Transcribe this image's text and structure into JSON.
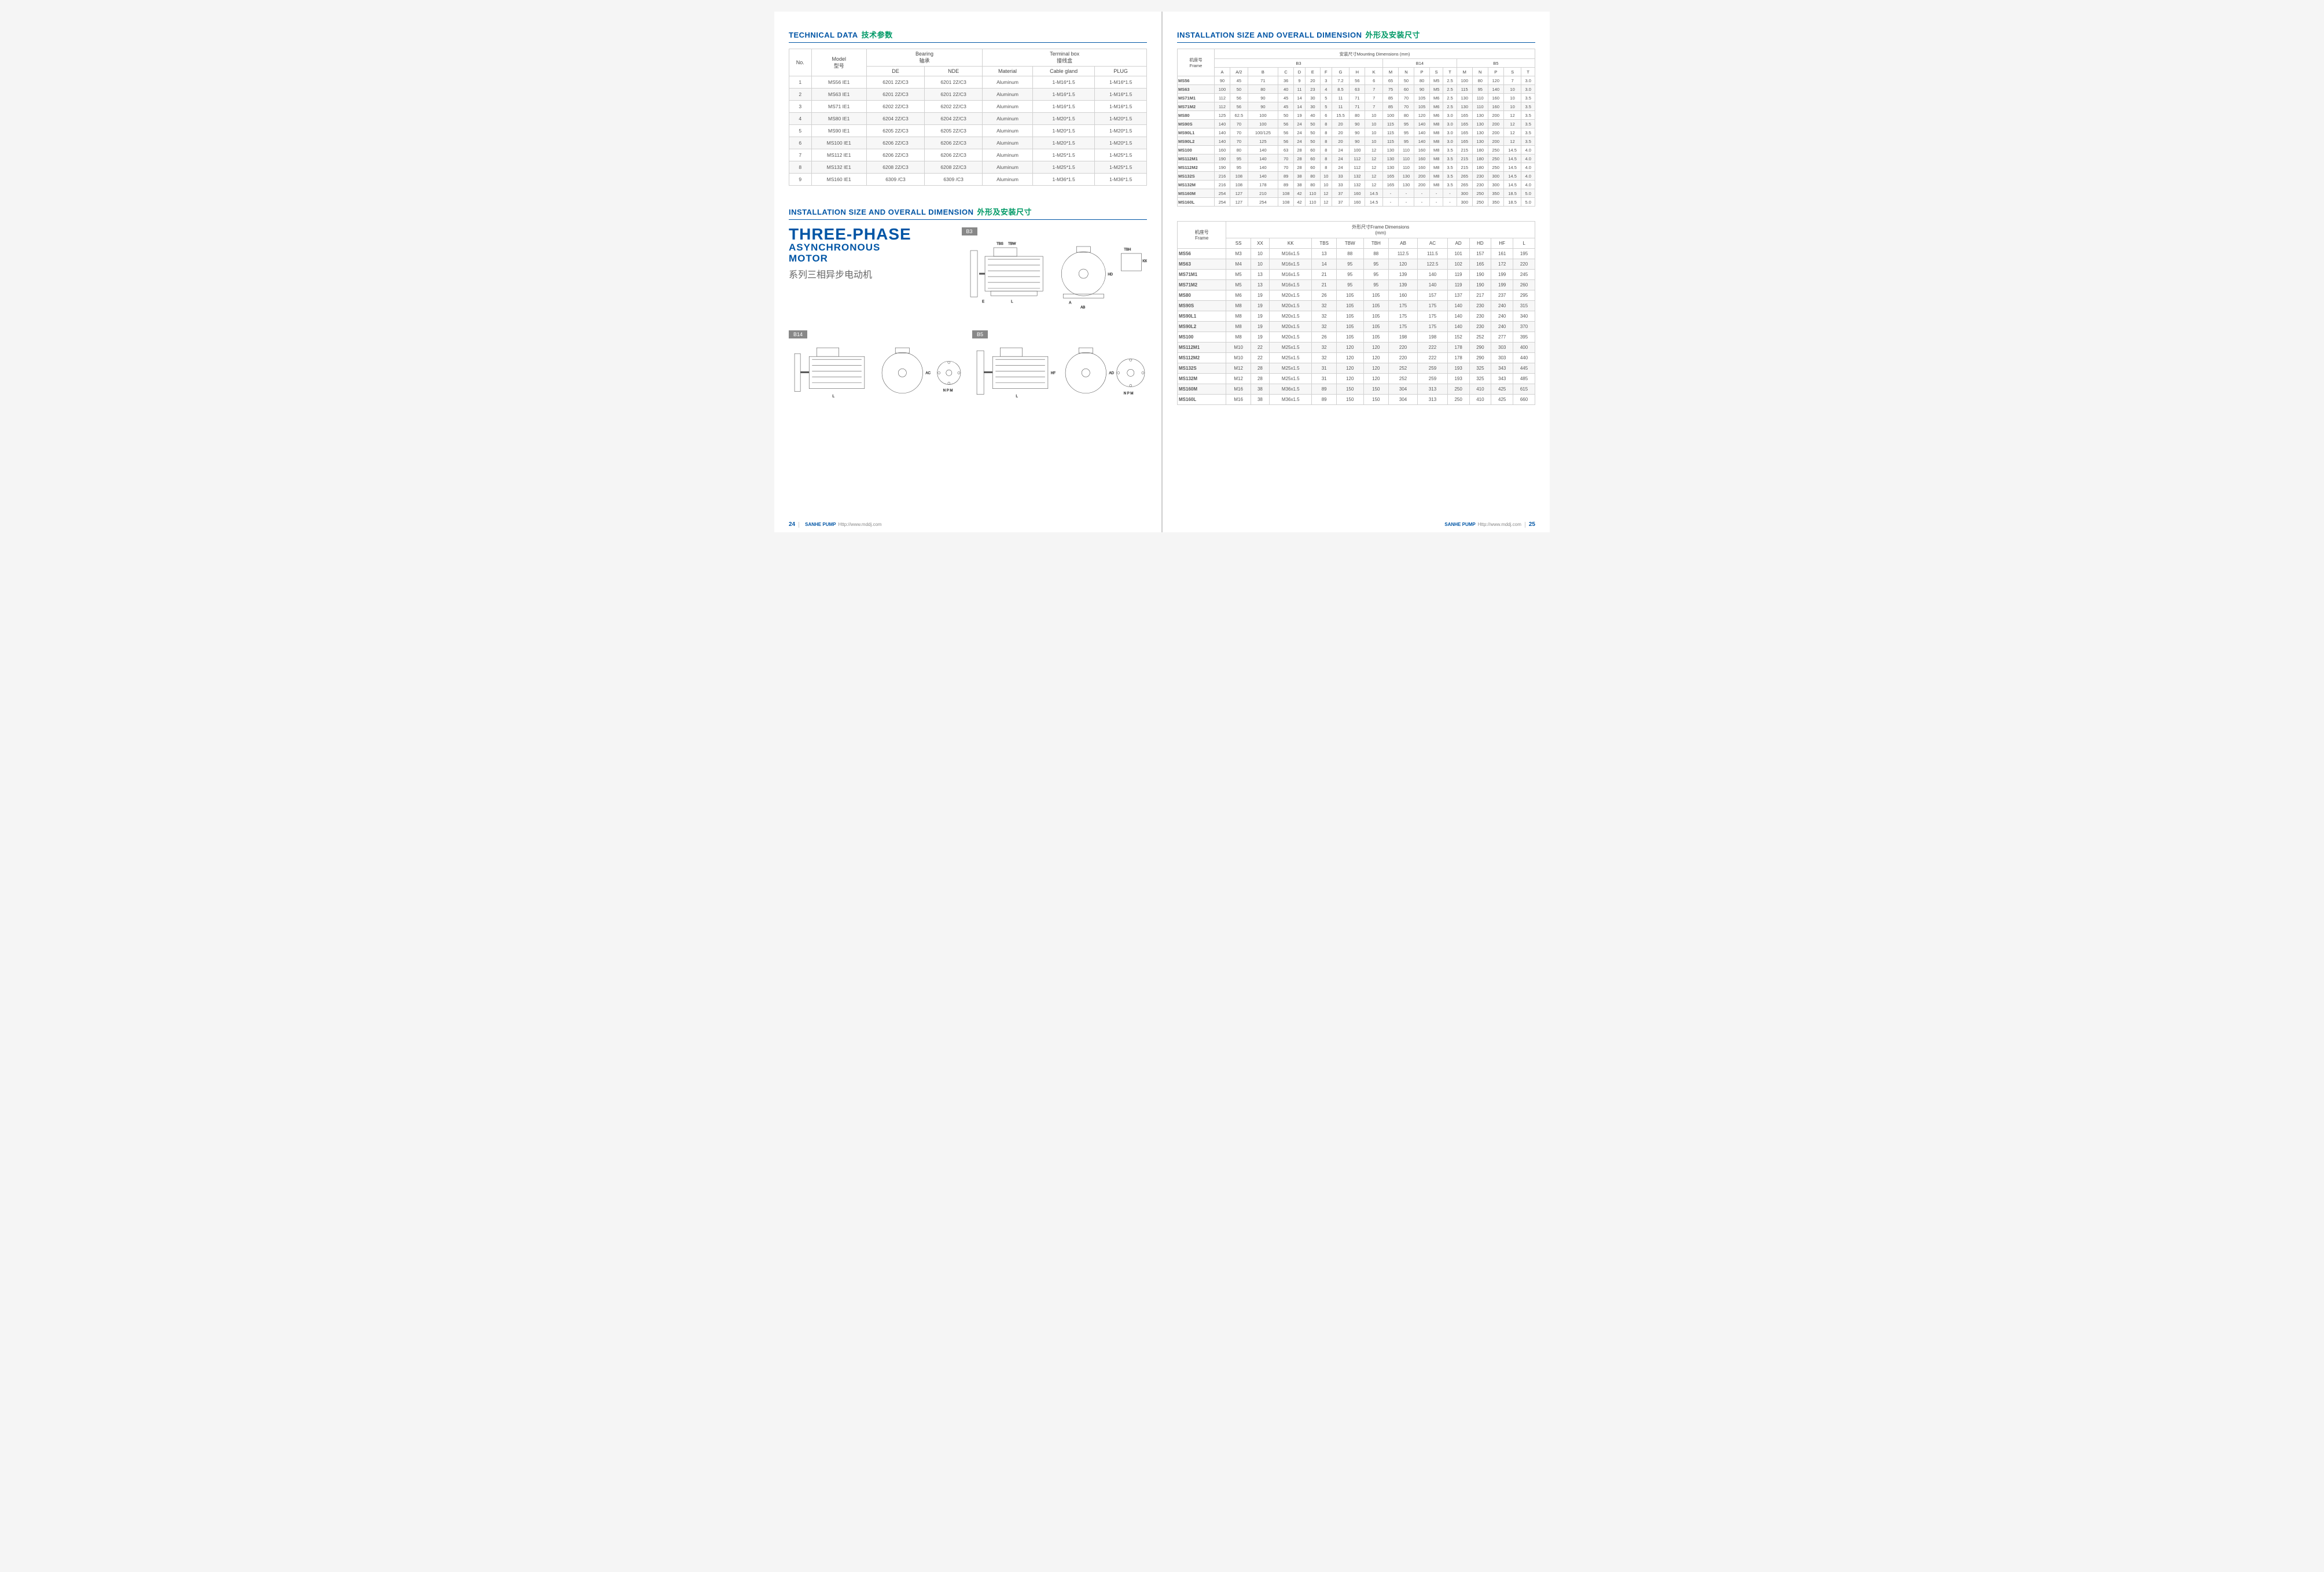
{
  "titles": {
    "techData": "TECHNICAL DATA",
    "techDataCn": "技术参数",
    "install": "INSTALLATION SIZE AND OVERALL DIMENSION",
    "installCn": "外形及安装尺寸",
    "bigTitle1": "THREE-PHASE",
    "bigTitle2": "ASYNCHRONOUS",
    "bigTitle3": "MOTOR",
    "cnTitle": "系列三相异步电动机"
  },
  "diaLabels": {
    "b3": "B3",
    "b14": "B14",
    "b5": "B5"
  },
  "footer": {
    "p24": "24",
    "p25": "25",
    "brand": "SANHE PUMP",
    "url": "Http://www.mddj.com"
  },
  "tech": {
    "h_no": "No.",
    "h_model": "Model",
    "h_model_cn": "型号",
    "h_bearing": "Bearing",
    "h_bearing_cn": "轴承",
    "h_de": "DE",
    "h_nde": "NDE",
    "h_tbox": "Terminal box",
    "h_tbox_cn": "接线盒",
    "h_mat": "Material",
    "h_gland": "Cable gland",
    "h_plug": "PLUG",
    "rows": [
      {
        "n": "1",
        "m": "MS56 IE1",
        "de": "6201 2Z/C3",
        "nde": "6201 2Z/C3",
        "mat": "Aluminum",
        "g": "1-M16*1.5",
        "p": "1-M16*1.5"
      },
      {
        "n": "2",
        "m": "MS63 IE1",
        "de": "6201 2Z/C3",
        "nde": "6201 2Z/C3",
        "mat": "Aluminum",
        "g": "1-M16*1.5",
        "p": "1-M16*1.5"
      },
      {
        "n": "3",
        "m": "MS71 IE1",
        "de": "6202 2Z/C3",
        "nde": "6202 2Z/C3",
        "mat": "Aluminum",
        "g": "1-M16*1.5",
        "p": "1-M16*1.5"
      },
      {
        "n": "4",
        "m": "MS80 IE1",
        "de": "6204 2Z/C3",
        "nde": "6204 2Z/C3",
        "mat": "Aluminum",
        "g": "1-M20*1.5",
        "p": "1-M20*1.5"
      },
      {
        "n": "5",
        "m": "MS90 IE1",
        "de": "6205 2Z/C3",
        "nde": "6205 2Z/C3",
        "mat": "Aluminum",
        "g": "1-M20*1.5",
        "p": "1-M20*1.5"
      },
      {
        "n": "6",
        "m": "MS100 IE1",
        "de": "6206 2Z/C3",
        "nde": "6206 2Z/C3",
        "mat": "Aluminum",
        "g": "1-M20*1.5",
        "p": "1-M20*1.5"
      },
      {
        "n": "7",
        "m": "MS112 IE1",
        "de": "6206 2Z/C3",
        "nde": "6206 2Z/C3",
        "mat": "Aluminum",
        "g": "1-M25*1.5",
        "p": "1-M25*1.5"
      },
      {
        "n": "8",
        "m": "MS132 IE1",
        "de": "6208 2Z/C3",
        "nde": "6208 2Z/C3",
        "mat": "Aluminum",
        "g": "1-M25*1.5",
        "p": "1-M25*1.5"
      },
      {
        "n": "9",
        "m": "MS160 IE1",
        "de": "6309 /C3",
        "nde": "6309 /C3",
        "mat": "Aluminum",
        "g": "1-M36*1.5",
        "p": "1-M36*1.5"
      }
    ]
  },
  "mount": {
    "h_frame": "机座号",
    "h_frame_en": "Frame",
    "h_top": "安装尺寸Mounting Dimensions (mm)",
    "h_b3": "B3",
    "h_b14": "B14",
    "h_b5": "B5",
    "cols": [
      "A",
      "A/2",
      "B",
      "C",
      "D",
      "E",
      "F",
      "G",
      "H",
      "K",
      "M",
      "N",
      "P",
      "S",
      "T",
      "M",
      "N",
      "P",
      "S",
      "T"
    ],
    "rows": [
      [
        "MS56",
        "90",
        "45",
        "71",
        "36",
        "9",
        "20",
        "3",
        "7.2",
        "56",
        "6",
        "65",
        "50",
        "80",
        "M5",
        "2.5",
        "100",
        "80",
        "120",
        "7",
        "3.0"
      ],
      [
        "MS63",
        "100",
        "50",
        "80",
        "40",
        "11",
        "23",
        "4",
        "8.5",
        "63",
        "7",
        "75",
        "60",
        "90",
        "M5",
        "2.5",
        "115",
        "95",
        "140",
        "10",
        "3.0"
      ],
      [
        "MS71M1",
        "112",
        "56",
        "90",
        "45",
        "14",
        "30",
        "5",
        "11",
        "71",
        "7",
        "85",
        "70",
        "105",
        "M6",
        "2.5",
        "130",
        "110",
        "160",
        "10",
        "3.5"
      ],
      [
        "MS71M2",
        "112",
        "56",
        "90",
        "45",
        "14",
        "30",
        "5",
        "11",
        "71",
        "7",
        "85",
        "70",
        "105",
        "M6",
        "2.5",
        "130",
        "110",
        "160",
        "10",
        "3.5"
      ],
      [
        "MS80",
        "125",
        "62.5",
        "100",
        "50",
        "19",
        "40",
        "6",
        "15.5",
        "80",
        "10",
        "100",
        "80",
        "120",
        "M6",
        "3.0",
        "165",
        "130",
        "200",
        "12",
        "3.5"
      ],
      [
        "MS90S",
        "140",
        "70",
        "100",
        "56",
        "24",
        "50",
        "8",
        "20",
        "90",
        "10",
        "115",
        "95",
        "140",
        "M8",
        "3.0",
        "165",
        "130",
        "200",
        "12",
        "3.5"
      ],
      [
        "MS90L1",
        "140",
        "70",
        "100/125",
        "56",
        "24",
        "50",
        "8",
        "20",
        "90",
        "10",
        "115",
        "95",
        "140",
        "M8",
        "3.0",
        "165",
        "130",
        "200",
        "12",
        "3.5"
      ],
      [
        "MS90L2",
        "140",
        "70",
        "125",
        "56",
        "24",
        "50",
        "8",
        "20",
        "90",
        "10",
        "115",
        "95",
        "140",
        "M8",
        "3.0",
        "165",
        "130",
        "200",
        "12",
        "3.5"
      ],
      [
        "MS100",
        "160",
        "80",
        "140",
        "63",
        "28",
        "60",
        "8",
        "24",
        "100",
        "12",
        "130",
        "110",
        "160",
        "M8",
        "3.5",
        "215",
        "180",
        "250",
        "14.5",
        "4.0"
      ],
      [
        "MS112M1",
        "190",
        "95",
        "140",
        "70",
        "28",
        "60",
        "8",
        "24",
        "112",
        "12",
        "130",
        "110",
        "160",
        "M8",
        "3.5",
        "215",
        "180",
        "250",
        "14.5",
        "4.0"
      ],
      [
        "MS112M2",
        "190",
        "95",
        "140",
        "70",
        "28",
        "60",
        "8",
        "24",
        "112",
        "12",
        "130",
        "110",
        "160",
        "M8",
        "3.5",
        "215",
        "180",
        "250",
        "14.5",
        "4.0"
      ],
      [
        "MS132S",
        "216",
        "108",
        "140",
        "89",
        "38",
        "80",
        "10",
        "33",
        "132",
        "12",
        "165",
        "130",
        "200",
        "M8",
        "3.5",
        "265",
        "230",
        "300",
        "14.5",
        "4.0"
      ],
      [
        "MS132M",
        "216",
        "108",
        "178",
        "89",
        "38",
        "80",
        "10",
        "33",
        "132",
        "12",
        "165",
        "130",
        "200",
        "M8",
        "3.5",
        "265",
        "230",
        "300",
        "14.5",
        "4.0"
      ],
      [
        "MS160M",
        "254",
        "127",
        "210",
        "108",
        "42",
        "110",
        "12",
        "37",
        "160",
        "14.5",
        "-",
        "-",
        "-",
        "-",
        "-",
        "300",
        "250",
        "350",
        "18.5",
        "5.0"
      ],
      [
        "MS160L",
        "254",
        "127",
        "254",
        "108",
        "42",
        "110",
        "12",
        "37",
        "160",
        "14.5",
        "-",
        "-",
        "-",
        "-",
        "-",
        "300",
        "250",
        "350",
        "18.5",
        "5.0"
      ]
    ]
  },
  "frameDim": {
    "h_top": "外形尺寸Frame Dimensions",
    "h_mm": "(mm)",
    "cols": [
      "SS",
      "XX",
      "KK",
      "TBS",
      "TBW",
      "TBH",
      "AB",
      "AC",
      "AD",
      "HD",
      "HF",
      "L"
    ],
    "rows": [
      [
        "MS56",
        "M3",
        "10",
        "M16x1.5",
        "13",
        "88",
        "88",
        "112.5",
        "111.5",
        "101",
        "157",
        "161",
        "195"
      ],
      [
        "MS63",
        "M4",
        "10",
        "M16x1.5",
        "14",
        "95",
        "95",
        "120",
        "122.5",
        "102",
        "165",
        "172",
        "220"
      ],
      [
        "MS71M1",
        "M5",
        "13",
        "M16x1.5",
        "21",
        "95",
        "95",
        "139",
        "140",
        "119",
        "190",
        "199",
        "245"
      ],
      [
        "MS71M2",
        "M5",
        "13",
        "M16x1.5",
        "21",
        "95",
        "95",
        "139",
        "140",
        "119",
        "190",
        "199",
        "260"
      ],
      [
        "MS80",
        "M6",
        "19",
        "M20x1.5",
        "26",
        "105",
        "105",
        "160",
        "157",
        "137",
        "217",
        "237",
        "295"
      ],
      [
        "MS90S",
        "M8",
        "19",
        "M20x1.5",
        "32",
        "105",
        "105",
        "175",
        "175",
        "140",
        "230",
        "240",
        "315"
      ],
      [
        "MS90L1",
        "M8",
        "19",
        "M20x1.5",
        "32",
        "105",
        "105",
        "175",
        "175",
        "140",
        "230",
        "240",
        "340"
      ],
      [
        "MS90L2",
        "M8",
        "19",
        "M20x1.5",
        "32",
        "105",
        "105",
        "175",
        "175",
        "140",
        "230",
        "240",
        "370"
      ],
      [
        "MS100",
        "M8",
        "19",
        "M20x1.5",
        "26",
        "105",
        "105",
        "198",
        "198",
        "152",
        "252",
        "277",
        "395"
      ],
      [
        "MS112M1",
        "M10",
        "22",
        "M25x1.5",
        "32",
        "120",
        "120",
        "220",
        "222",
        "178",
        "290",
        "303",
        "400"
      ],
      [
        "MS112M2",
        "M10",
        "22",
        "M25x1.5",
        "32",
        "120",
        "120",
        "220",
        "222",
        "178",
        "290",
        "303",
        "440"
      ],
      [
        "MS132S",
        "M12",
        "28",
        "M25x1.5",
        "31",
        "120",
        "120",
        "252",
        "259",
        "193",
        "325",
        "343",
        "445"
      ],
      [
        "MS132M",
        "M12",
        "28",
        "M25x1.5",
        "31",
        "120",
        "120",
        "252",
        "259",
        "193",
        "325",
        "343",
        "485"
      ],
      [
        "MS160M",
        "M16",
        "38",
        "M36x1.5",
        "89",
        "150",
        "150",
        "304",
        "313",
        "250",
        "410",
        "425",
        "615"
      ],
      [
        "MS160L",
        "M16",
        "38",
        "M36x1.5",
        "89",
        "150",
        "150",
        "304",
        "313",
        "250",
        "410",
        "425",
        "660"
      ]
    ]
  },
  "style": {
    "accent": "#0055a5",
    "green": "#009966",
    "grid": "#d0d0d0",
    "rowAlt": "#f7f7f7",
    "text": "#555"
  }
}
